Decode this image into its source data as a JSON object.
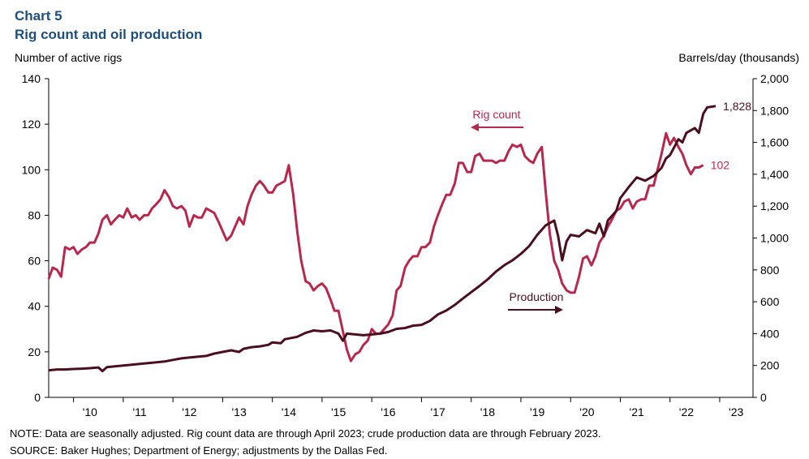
{
  "header": {
    "chart_label": "Chart 5",
    "chart_title": "Rig count and oil production"
  },
  "axes": {
    "left_title": "Number of active rigs",
    "right_title": "Barrels/day (thousands)"
  },
  "footer": {
    "note": "NOTE: Data are seasonally adjusted. Rig count data are through April 2023; crude production data are through February 2023.",
    "source": "SOURCE: Baker Hughes; Department of Energy; adjustments by the Dallas Fed."
  },
  "colors": {
    "rig": "#b5294e",
    "production": "#4a0f1e",
    "axis": "#000000"
  },
  "chart_data": {
    "type": "line",
    "title": "Rig count and oil production",
    "xlabel": "",
    "ylabel_left": "Number of active rigs",
    "ylabel_right": "Barrels/day (thousands)",
    "x_range": [
      2009.5,
      2023.67
    ],
    "ylim_left": [
      0,
      140
    ],
    "ylim_right": [
      0,
      2000
    ],
    "yticks_left": [
      0,
      20,
      40,
      60,
      80,
      100,
      120,
      140
    ],
    "yticks_right": [
      {
        "value": 0,
        "label": "0"
      },
      {
        "value": 200,
        "label": "200"
      },
      {
        "value": 400,
        "label": "400"
      },
      {
        "value": 600,
        "label": "600"
      },
      {
        "value": 800,
        "label": "800"
      },
      {
        "value": 1000,
        "label": "1,000"
      },
      {
        "value": 1200,
        "label": "1,200"
      },
      {
        "value": 1400,
        "label": "1,400"
      },
      {
        "value": 1600,
        "label": "1,600"
      },
      {
        "value": 1800,
        "label": "1,800"
      },
      {
        "value": 2000,
        "label": "2,000"
      }
    ],
    "xticks": [
      {
        "value": 2010,
        "label": "'10"
      },
      {
        "value": 2011,
        "label": "'11"
      },
      {
        "value": 2012,
        "label": "'12"
      },
      {
        "value": 2013,
        "label": "'13"
      },
      {
        "value": 2014,
        "label": "'14"
      },
      {
        "value": 2015,
        "label": "'15"
      },
      {
        "value": 2016,
        "label": "'16"
      },
      {
        "value": 2017,
        "label": "'17"
      },
      {
        "value": 2018,
        "label": "'18"
      },
      {
        "value": 2019,
        "label": "'19"
      },
      {
        "value": 2020,
        "label": "'20"
      },
      {
        "value": 2021,
        "label": "'21"
      },
      {
        "value": 2022,
        "label": "'22"
      },
      {
        "value": 2023,
        "label": "'23"
      }
    ],
    "series": [
      {
        "name": "Rig count",
        "axis": "left",
        "annotation": "Rig count",
        "end_label": "102",
        "points": [
          [
            2009.5,
            52
          ],
          [
            2009.58,
            57
          ],
          [
            2009.67,
            56
          ],
          [
            2009.75,
            53
          ],
          [
            2009.83,
            66
          ],
          [
            2009.92,
            65
          ],
          [
            2010.0,
            66
          ],
          [
            2010.08,
            63
          ],
          [
            2010.17,
            65
          ],
          [
            2010.25,
            66
          ],
          [
            2010.33,
            68
          ],
          [
            2010.42,
            68
          ],
          [
            2010.5,
            72
          ],
          [
            2010.58,
            78
          ],
          [
            2010.67,
            80
          ],
          [
            2010.75,
            76
          ],
          [
            2010.83,
            78
          ],
          [
            2010.92,
            80
          ],
          [
            2011.0,
            79
          ],
          [
            2011.08,
            83
          ],
          [
            2011.17,
            79
          ],
          [
            2011.25,
            80
          ],
          [
            2011.33,
            78
          ],
          [
            2011.42,
            80
          ],
          [
            2011.5,
            80
          ],
          [
            2011.58,
            83
          ],
          [
            2011.67,
            85
          ],
          [
            2011.75,
            87
          ],
          [
            2011.83,
            91
          ],
          [
            2011.92,
            88
          ],
          [
            2012.0,
            84
          ],
          [
            2012.08,
            83
          ],
          [
            2012.17,
            84
          ],
          [
            2012.25,
            82
          ],
          [
            2012.33,
            75
          ],
          [
            2012.42,
            80
          ],
          [
            2012.5,
            79
          ],
          [
            2012.58,
            79
          ],
          [
            2012.67,
            83
          ],
          [
            2012.75,
            82
          ],
          [
            2012.83,
            81
          ],
          [
            2012.92,
            77
          ],
          [
            2013.0,
            73
          ],
          [
            2013.08,
            69
          ],
          [
            2013.17,
            71
          ],
          [
            2013.25,
            75
          ],
          [
            2013.33,
            79
          ],
          [
            2013.42,
            76
          ],
          [
            2013.5,
            84
          ],
          [
            2013.58,
            89
          ],
          [
            2013.67,
            93
          ],
          [
            2013.75,
            95
          ],
          [
            2013.83,
            93
          ],
          [
            2013.92,
            90
          ],
          [
            2014.0,
            90
          ],
          [
            2014.08,
            93
          ],
          [
            2014.17,
            94
          ],
          [
            2014.25,
            95
          ],
          [
            2014.33,
            102
          ],
          [
            2014.42,
            89
          ],
          [
            2014.5,
            73
          ],
          [
            2014.58,
            60
          ],
          [
            2014.67,
            51
          ],
          [
            2014.75,
            50
          ],
          [
            2014.83,
            47
          ],
          [
            2014.92,
            49
          ],
          [
            2015.0,
            50
          ],
          [
            2015.08,
            48
          ],
          [
            2015.17,
            43
          ],
          [
            2015.25,
            38
          ],
          [
            2015.33,
            38
          ],
          [
            2015.42,
            29
          ],
          [
            2015.5,
            21
          ],
          [
            2015.58,
            16
          ],
          [
            2015.67,
            19
          ],
          [
            2015.75,
            20
          ],
          [
            2015.83,
            23
          ],
          [
            2015.92,
            25
          ],
          [
            2016.0,
            30
          ],
          [
            2016.08,
            28
          ],
          [
            2016.17,
            28
          ],
          [
            2016.25,
            30
          ],
          [
            2016.33,
            32
          ],
          [
            2016.42,
            36
          ],
          [
            2016.5,
            47
          ],
          [
            2016.58,
            49
          ],
          [
            2016.67,
            57
          ],
          [
            2016.75,
            60
          ],
          [
            2016.83,
            62
          ],
          [
            2016.92,
            62
          ],
          [
            2017.0,
            66
          ],
          [
            2017.08,
            66
          ],
          [
            2017.17,
            68
          ],
          [
            2017.25,
            75
          ],
          [
            2017.33,
            80
          ],
          [
            2017.42,
            85
          ],
          [
            2017.5,
            89
          ],
          [
            2017.58,
            89
          ],
          [
            2017.67,
            94
          ],
          [
            2017.75,
            103
          ],
          [
            2017.83,
            103
          ],
          [
            2017.92,
            99
          ],
          [
            2018.0,
            99
          ],
          [
            2018.08,
            106
          ],
          [
            2018.17,
            107
          ],
          [
            2018.25,
            104
          ],
          [
            2018.33,
            104
          ],
          [
            2018.42,
            104
          ],
          [
            2018.5,
            103
          ],
          [
            2018.58,
            104
          ],
          [
            2018.67,
            104
          ],
          [
            2018.75,
            108
          ],
          [
            2018.83,
            111
          ],
          [
            2018.92,
            110
          ],
          [
            2019.0,
            111
          ],
          [
            2019.08,
            106
          ],
          [
            2019.17,
            104
          ],
          [
            2019.25,
            103
          ],
          [
            2019.33,
            107
          ],
          [
            2019.42,
            110
          ],
          [
            2019.5,
            90
          ],
          [
            2019.58,
            72
          ],
          [
            2019.67,
            60
          ],
          [
            2019.75,
            56
          ],
          [
            2019.83,
            50
          ],
          [
            2019.92,
            47
          ],
          [
            2020.0,
            46
          ],
          [
            2020.08,
            46
          ],
          [
            2020.17,
            53
          ],
          [
            2020.25,
            61
          ],
          [
            2020.33,
            62
          ],
          [
            2020.42,
            58
          ],
          [
            2020.5,
            62
          ],
          [
            2020.58,
            68
          ],
          [
            2020.67,
            71
          ],
          [
            2020.75,
            75
          ],
          [
            2020.83,
            78
          ],
          [
            2020.92,
            82
          ],
          [
            2021.0,
            83
          ],
          [
            2021.08,
            86
          ],
          [
            2021.17,
            87
          ],
          [
            2021.25,
            83
          ],
          [
            2021.33,
            86
          ],
          [
            2021.42,
            87
          ],
          [
            2021.5,
            87
          ],
          [
            2021.58,
            93
          ],
          [
            2021.67,
            93
          ],
          [
            2021.75,
            100
          ],
          [
            2021.83,
            107
          ],
          [
            2021.92,
            116
          ],
          [
            2022.0,
            111
          ],
          [
            2022.08,
            114
          ],
          [
            2022.17,
            110
          ],
          [
            2022.25,
            107
          ],
          [
            2022.33,
            102
          ],
          [
            2022.42,
            98
          ],
          [
            2022.5,
            101
          ],
          [
            2022.58,
            101
          ],
          [
            2022.67,
            102
          ]
        ]
      },
      {
        "name": "Production",
        "axis": "right",
        "annotation": "Production",
        "end_label": "1,828",
        "points": [
          [
            2009.5,
            170
          ],
          [
            2009.67,
            175
          ],
          [
            2009.83,
            175
          ],
          [
            2010.0,
            178
          ],
          [
            2010.17,
            180
          ],
          [
            2010.33,
            183
          ],
          [
            2010.5,
            188
          ],
          [
            2010.58,
            165
          ],
          [
            2010.67,
            190
          ],
          [
            2010.83,
            195
          ],
          [
            2011.0,
            200
          ],
          [
            2011.17,
            205
          ],
          [
            2011.33,
            210
          ],
          [
            2011.5,
            215
          ],
          [
            2011.67,
            220
          ],
          [
            2011.83,
            225
          ],
          [
            2012.0,
            235
          ],
          [
            2012.17,
            245
          ],
          [
            2012.33,
            250
          ],
          [
            2012.5,
            255
          ],
          [
            2012.67,
            260
          ],
          [
            2012.83,
            275
          ],
          [
            2013.0,
            285
          ],
          [
            2013.17,
            295
          ],
          [
            2013.33,
            285
          ],
          [
            2013.42,
            305
          ],
          [
            2013.58,
            315
          ],
          [
            2013.75,
            320
          ],
          [
            2013.92,
            330
          ],
          [
            2014.0,
            345
          ],
          [
            2014.17,
            340
          ],
          [
            2014.25,
            365
          ],
          [
            2014.42,
            375
          ],
          [
            2014.5,
            380
          ],
          [
            2014.67,
            405
          ],
          [
            2014.83,
            420
          ],
          [
            2015.0,
            415
          ],
          [
            2015.17,
            420
          ],
          [
            2015.25,
            410
          ],
          [
            2015.33,
            400
          ],
          [
            2015.42,
            355
          ],
          [
            2015.5,
            400
          ],
          [
            2015.67,
            395
          ],
          [
            2015.83,
            390
          ],
          [
            2016.0,
            395
          ],
          [
            2016.17,
            400
          ],
          [
            2016.33,
            410
          ],
          [
            2016.5,
            430
          ],
          [
            2016.67,
            435
          ],
          [
            2016.83,
            450
          ],
          [
            2017.0,
            455
          ],
          [
            2017.17,
            480
          ],
          [
            2017.33,
            520
          ],
          [
            2017.5,
            545
          ],
          [
            2017.67,
            580
          ],
          [
            2017.83,
            620
          ],
          [
            2018.0,
            660
          ],
          [
            2018.17,
            700
          ],
          [
            2018.33,
            740
          ],
          [
            2018.5,
            790
          ],
          [
            2018.67,
            830
          ],
          [
            2018.83,
            860
          ],
          [
            2019.0,
            900
          ],
          [
            2019.17,
            950
          ],
          [
            2019.33,
            1020
          ],
          [
            2019.5,
            1080
          ],
          [
            2019.67,
            1110
          ],
          [
            2019.75,
            1010
          ],
          [
            2019.83,
            860
          ],
          [
            2019.92,
            980
          ],
          [
            2020.0,
            1020
          ],
          [
            2020.17,
            1010
          ],
          [
            2020.33,
            1050
          ],
          [
            2020.5,
            1030
          ],
          [
            2020.58,
            1090
          ],
          [
            2020.67,
            1010
          ],
          [
            2020.75,
            1110
          ],
          [
            2020.92,
            1170
          ],
          [
            2021.0,
            1250
          ],
          [
            2021.17,
            1320
          ],
          [
            2021.33,
            1380
          ],
          [
            2021.5,
            1360
          ],
          [
            2021.67,
            1390
          ],
          [
            2021.83,
            1440
          ],
          [
            2021.92,
            1500
          ],
          [
            2022.0,
            1520
          ],
          [
            2022.17,
            1620
          ],
          [
            2022.25,
            1600
          ],
          [
            2022.33,
            1660
          ],
          [
            2022.5,
            1690
          ],
          [
            2022.58,
            1660
          ],
          [
            2022.67,
            1780
          ],
          [
            2022.75,
            1820
          ],
          [
            2022.92,
            1828
          ]
        ]
      }
    ]
  }
}
